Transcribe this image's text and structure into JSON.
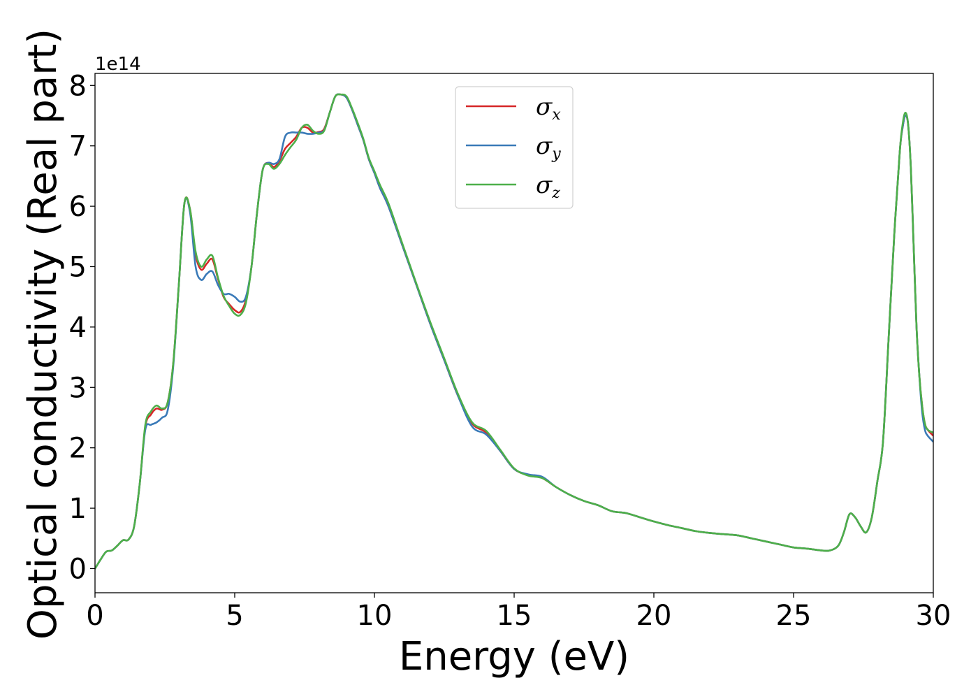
{
  "chart_data": {
    "type": "line",
    "title": "",
    "xlabel": "Energy (eV)",
    "ylabel": "Optical conductivity (Real part)",
    "y_offset_label": "1e14",
    "xlim": [
      0,
      30
    ],
    "ylim": [
      -0.4,
      8.2
    ],
    "xticks": [
      0,
      5,
      10,
      15,
      20,
      25,
      30
    ],
    "yticks": [
      0,
      1,
      2,
      3,
      4,
      5,
      6,
      7,
      8
    ],
    "xtick_labels": [
      "0",
      "5",
      "10",
      "15",
      "20",
      "25",
      "30"
    ],
    "ytick_labels": [
      "0",
      "1",
      "2",
      "3",
      "4",
      "5",
      "6",
      "7",
      "8"
    ],
    "grid": false,
    "legend_position": "top-center",
    "series": [
      {
        "name": "σx",
        "symbol": "σ",
        "subscript": "x",
        "color": "#d62728",
        "x": [
          0,
          0.2,
          0.4,
          0.6,
          0.8,
          1.0,
          1.2,
          1.4,
          1.6,
          1.8,
          2.0,
          2.2,
          2.4,
          2.6,
          2.8,
          3.0,
          3.2,
          3.4,
          3.6,
          3.8,
          4.0,
          4.2,
          4.4,
          4.6,
          4.8,
          5.0,
          5.2,
          5.4,
          5.6,
          5.8,
          6.0,
          6.2,
          6.4,
          6.6,
          6.8,
          7.0,
          7.2,
          7.4,
          7.6,
          7.8,
          8.0,
          8.2,
          8.4,
          8.6,
          8.8,
          9.0,
          9.2,
          9.4,
          9.6,
          9.8,
          10.0,
          10.2,
          10.5,
          11.0,
          11.5,
          12.0,
          12.5,
          13.0,
          13.5,
          14.0,
          14.5,
          15.0,
          15.5,
          16.0,
          16.5,
          17.0,
          17.5,
          18.0,
          18.5,
          19.0,
          19.5,
          20.0,
          20.5,
          21.0,
          21.5,
          22.0,
          22.5,
          23.0,
          23.5,
          24.0,
          24.5,
          25.0,
          25.5,
          26.0,
          26.3,
          26.6,
          26.8,
          27.0,
          27.2,
          27.4,
          27.6,
          27.8,
          28.0,
          28.2,
          28.4,
          28.6,
          28.8,
          28.9,
          29.0,
          29.1,
          29.2,
          29.3,
          29.4,
          29.5,
          29.6,
          29.7,
          29.8,
          30.0
        ],
        "values": [
          0.0,
          0.15,
          0.28,
          0.3,
          0.38,
          0.47,
          0.48,
          0.7,
          1.4,
          2.35,
          2.55,
          2.65,
          2.63,
          2.75,
          3.4,
          4.7,
          6.05,
          5.95,
          5.2,
          4.95,
          5.05,
          5.12,
          4.8,
          4.5,
          4.38,
          4.28,
          4.25,
          4.45,
          5.0,
          5.9,
          6.6,
          6.72,
          6.65,
          6.75,
          6.95,
          7.05,
          7.15,
          7.3,
          7.3,
          7.22,
          7.23,
          7.28,
          7.55,
          7.82,
          7.85,
          7.8,
          7.6,
          7.35,
          7.1,
          6.78,
          6.55,
          6.3,
          6.0,
          5.35,
          4.7,
          4.05,
          3.45,
          2.85,
          2.4,
          2.25,
          1.95,
          1.65,
          1.55,
          1.5,
          1.35,
          1.22,
          1.12,
          1.05,
          0.95,
          0.92,
          0.85,
          0.78,
          0.72,
          0.67,
          0.62,
          0.59,
          0.57,
          0.55,
          0.5,
          0.45,
          0.4,
          0.35,
          0.33,
          0.3,
          0.3,
          0.38,
          0.6,
          0.9,
          0.85,
          0.7,
          0.6,
          0.85,
          1.45,
          2.1,
          3.8,
          5.5,
          6.9,
          7.3,
          7.5,
          7.35,
          6.6,
          5.3,
          4.0,
          3.2,
          2.7,
          2.4,
          2.3,
          2.2
        ]
      },
      {
        "name": "σy",
        "symbol": "σ",
        "subscript": "y",
        "color": "#3a7ab8",
        "x": [
          0,
          0.2,
          0.4,
          0.6,
          0.8,
          1.0,
          1.2,
          1.4,
          1.6,
          1.8,
          2.0,
          2.2,
          2.4,
          2.6,
          2.8,
          3.0,
          3.2,
          3.4,
          3.6,
          3.8,
          4.0,
          4.2,
          4.4,
          4.6,
          4.8,
          5.0,
          5.2,
          5.4,
          5.6,
          5.8,
          6.0,
          6.2,
          6.4,
          6.6,
          6.8,
          7.0,
          7.2,
          7.4,
          7.6,
          7.8,
          8.0,
          8.2,
          8.4,
          8.6,
          8.8,
          9.0,
          9.2,
          9.4,
          9.6,
          9.8,
          10.0,
          10.2,
          10.5,
          11.0,
          11.5,
          12.0,
          12.5,
          13.0,
          13.5,
          14.0,
          14.5,
          15.0,
          15.5,
          16.0,
          16.5,
          17.0,
          17.5,
          18.0,
          18.5,
          19.0,
          19.5,
          20.0,
          20.5,
          21.0,
          21.5,
          22.0,
          22.5,
          23.0,
          23.5,
          24.0,
          24.5,
          25.0,
          25.5,
          26.0,
          26.3,
          26.6,
          26.8,
          27.0,
          27.2,
          27.4,
          27.6,
          27.8,
          28.0,
          28.2,
          28.4,
          28.6,
          28.8,
          28.9,
          29.0,
          29.1,
          29.2,
          29.3,
          29.4,
          29.5,
          29.6,
          29.7,
          29.8,
          30.0
        ],
        "values": [
          0.0,
          0.15,
          0.28,
          0.3,
          0.38,
          0.47,
          0.48,
          0.7,
          1.4,
          2.3,
          2.38,
          2.42,
          2.5,
          2.62,
          3.35,
          4.7,
          6.05,
          5.9,
          5.0,
          4.78,
          4.88,
          4.92,
          4.7,
          4.55,
          4.55,
          4.5,
          4.42,
          4.5,
          5.0,
          5.9,
          6.6,
          6.72,
          6.7,
          6.78,
          7.15,
          7.22,
          7.22,
          7.22,
          7.2,
          7.2,
          7.22,
          7.26,
          7.55,
          7.82,
          7.85,
          7.8,
          7.6,
          7.35,
          7.1,
          6.78,
          6.55,
          6.3,
          6.0,
          5.35,
          4.7,
          4.05,
          3.45,
          2.85,
          2.35,
          2.22,
          1.95,
          1.65,
          1.56,
          1.52,
          1.35,
          1.22,
          1.12,
          1.05,
          0.95,
          0.92,
          0.85,
          0.78,
          0.72,
          0.67,
          0.62,
          0.59,
          0.57,
          0.55,
          0.5,
          0.45,
          0.4,
          0.35,
          0.33,
          0.3,
          0.3,
          0.38,
          0.6,
          0.9,
          0.85,
          0.7,
          0.6,
          0.85,
          1.45,
          2.1,
          3.8,
          5.5,
          6.9,
          7.3,
          7.5,
          7.35,
          6.6,
          5.3,
          4.0,
          3.2,
          2.6,
          2.3,
          2.2,
          2.1
        ]
      },
      {
        "name": "σz",
        "symbol": "σ",
        "subscript": "z",
        "color": "#4daf4a",
        "x": [
          0,
          0.2,
          0.4,
          0.6,
          0.8,
          1.0,
          1.2,
          1.4,
          1.6,
          1.8,
          2.0,
          2.2,
          2.4,
          2.6,
          2.8,
          3.0,
          3.2,
          3.4,
          3.6,
          3.8,
          4.0,
          4.2,
          4.4,
          4.6,
          4.8,
          5.0,
          5.2,
          5.4,
          5.6,
          5.8,
          6.0,
          6.2,
          6.4,
          6.6,
          6.8,
          7.0,
          7.2,
          7.4,
          7.6,
          7.8,
          8.0,
          8.2,
          8.4,
          8.6,
          8.8,
          9.0,
          9.2,
          9.4,
          9.6,
          9.8,
          10.0,
          10.2,
          10.5,
          11.0,
          11.5,
          12.0,
          12.5,
          13.0,
          13.5,
          14.0,
          14.5,
          15.0,
          15.5,
          16.0,
          16.5,
          17.0,
          17.5,
          18.0,
          18.5,
          19.0,
          19.5,
          20.0,
          20.5,
          21.0,
          21.5,
          22.0,
          22.5,
          23.0,
          23.5,
          24.0,
          24.5,
          25.0,
          25.5,
          26.0,
          26.3,
          26.6,
          26.8,
          27.0,
          27.2,
          27.4,
          27.6,
          27.8,
          28.0,
          28.2,
          28.4,
          28.6,
          28.8,
          28.9,
          29.0,
          29.1,
          29.2,
          29.3,
          29.4,
          29.5,
          29.6,
          29.7,
          29.8,
          30.0
        ],
        "values": [
          0.0,
          0.15,
          0.28,
          0.3,
          0.38,
          0.47,
          0.48,
          0.7,
          1.4,
          2.38,
          2.6,
          2.7,
          2.65,
          2.75,
          3.4,
          4.7,
          6.05,
          5.95,
          5.25,
          5.0,
          5.12,
          5.18,
          4.82,
          4.52,
          4.35,
          4.22,
          4.2,
          4.4,
          5.0,
          5.9,
          6.6,
          6.7,
          6.62,
          6.7,
          6.85,
          6.98,
          7.1,
          7.3,
          7.35,
          7.25,
          7.2,
          7.25,
          7.55,
          7.82,
          7.85,
          7.82,
          7.62,
          7.38,
          7.12,
          6.8,
          6.58,
          6.35,
          6.05,
          5.38,
          4.72,
          4.08,
          3.48,
          2.88,
          2.42,
          2.28,
          1.97,
          1.66,
          1.54,
          1.5,
          1.35,
          1.22,
          1.12,
          1.05,
          0.95,
          0.92,
          0.85,
          0.78,
          0.72,
          0.67,
          0.62,
          0.59,
          0.57,
          0.55,
          0.5,
          0.45,
          0.4,
          0.35,
          0.33,
          0.3,
          0.3,
          0.38,
          0.6,
          0.9,
          0.85,
          0.7,
          0.6,
          0.85,
          1.45,
          2.1,
          3.8,
          5.5,
          6.9,
          7.35,
          7.55,
          7.35,
          6.6,
          5.3,
          4.0,
          3.2,
          2.7,
          2.4,
          2.3,
          2.25
        ]
      }
    ]
  }
}
